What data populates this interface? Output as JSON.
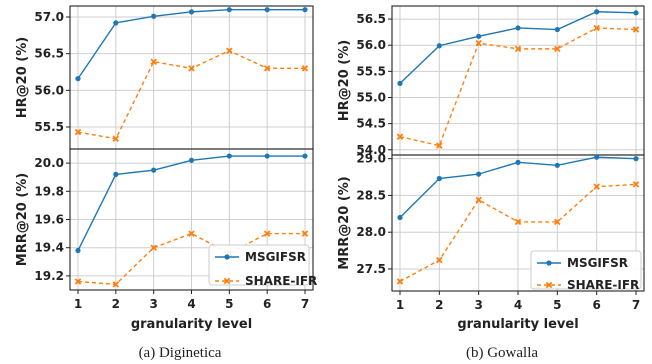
{
  "colors": {
    "msgifsr": "#1f77b4",
    "share": "#ff7f0e",
    "grid": "#cfcfcf",
    "axis": "#222222"
  },
  "figure_captions": [
    "(a) Diginetica",
    "(b) Gowalla"
  ],
  "chart_data": [
    {
      "type": "line",
      "panel": "(a) Diginetica - top",
      "x": [
        1,
        2,
        3,
        4,
        5,
        6,
        7
      ],
      "xlabel": "",
      "ylabel": "HR@20 (%)",
      "ylim": [
        55.2,
        57.15
      ],
      "yticks": [
        55.5,
        56.0,
        56.5,
        57.0
      ],
      "ytick_labels": [
        "55.5",
        "56.0",
        "56.5",
        "57.0"
      ],
      "grid": true,
      "series": [
        {
          "name": "MSGIFSR",
          "values": [
            56.16,
            56.92,
            57.01,
            57.07,
            57.1,
            57.1,
            57.1
          ]
        },
        {
          "name": "SHARE-IFR",
          "values": [
            55.43,
            55.34,
            56.39,
            56.3,
            56.54,
            56.3,
            56.3
          ]
        }
      ]
    },
    {
      "type": "line",
      "panel": "(a) Diginetica - bottom",
      "x": [
        1,
        2,
        3,
        4,
        5,
        6,
        7
      ],
      "xlabel": "granularity level",
      "ylabel": "MRR@20 (%)",
      "ylim": [
        19.1,
        20.1
      ],
      "yticks": [
        19.2,
        19.4,
        19.6,
        19.8,
        20.0
      ],
      "ytick_labels": [
        "19.2",
        "19.4",
        "19.6",
        "19.8",
        "20.0"
      ],
      "xtick_labels": [
        "1",
        "2",
        "3",
        "4",
        "5",
        "6",
        "7"
      ],
      "grid": true,
      "legend": "bottom-right",
      "series": [
        {
          "name": "MSGIFSR",
          "values": [
            19.38,
            19.92,
            19.95,
            20.02,
            20.05,
            20.05,
            20.05
          ]
        },
        {
          "name": "SHARE-IFR",
          "values": [
            19.16,
            19.14,
            19.4,
            19.5,
            19.36,
            19.5,
            19.5
          ]
        }
      ]
    },
    {
      "type": "line",
      "panel": "(b) Gowalla - top",
      "x": [
        1,
        2,
        3,
        4,
        5,
        6,
        7
      ],
      "xlabel": "",
      "ylabel": "HR@20 (%)",
      "ylim": [
        53.9,
        56.75
      ],
      "yticks": [
        54.0,
        54.5,
        55.0,
        55.5,
        56.0,
        56.5
      ],
      "ytick_labels": [
        "54.0",
        "54.5",
        "55.0",
        "55.5",
        "56.0",
        "56.5"
      ],
      "grid": true,
      "series": [
        {
          "name": "MSGIFSR",
          "values": [
            55.27,
            55.99,
            56.17,
            56.33,
            56.3,
            56.64,
            56.62
          ]
        },
        {
          "name": "SHARE-IFR",
          "values": [
            54.25,
            54.08,
            56.04,
            55.93,
            55.93,
            56.33,
            56.3
          ]
        }
      ]
    },
    {
      "type": "line",
      "panel": "(b) Gowalla - bottom",
      "x": [
        1,
        2,
        3,
        4,
        5,
        6,
        7
      ],
      "xlabel": "granularity level",
      "ylabel": "MRR@20 (%)",
      "ylim": [
        27.2,
        29.05
      ],
      "yticks": [
        27.5,
        28.0,
        28.5,
        29.0
      ],
      "ytick_labels": [
        "27.5",
        "28.0",
        "28.5",
        "29.0"
      ],
      "xtick_labels": [
        "1",
        "2",
        "3",
        "4",
        "5",
        "6",
        "7"
      ],
      "grid": true,
      "legend": "bottom-right",
      "series": [
        {
          "name": "MSGIFSR",
          "values": [
            28.2,
            28.73,
            28.79,
            28.95,
            28.91,
            29.02,
            29.0
          ]
        },
        {
          "name": "SHARE-IFR",
          "values": [
            27.33,
            27.62,
            28.44,
            28.14,
            28.14,
            28.62,
            28.65
          ]
        }
      ]
    }
  ]
}
